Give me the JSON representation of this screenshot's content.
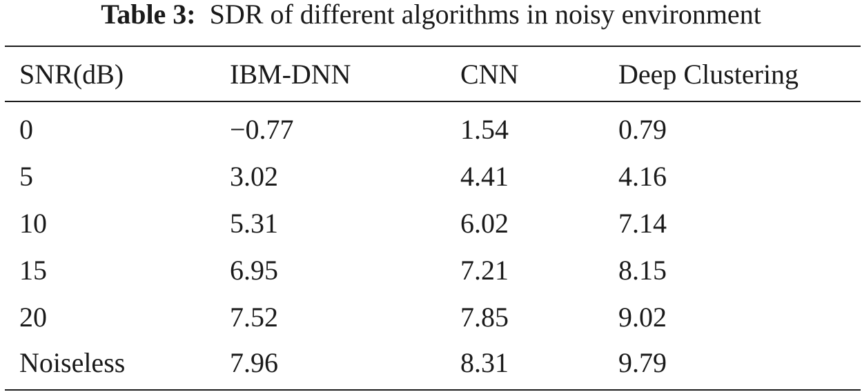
{
  "caption": {
    "label": "Table 3:",
    "text": "SDR of different algorithms in noisy environment"
  },
  "table": {
    "headers": [
      "SNR(dB)",
      "IBM-DNN",
      "CNN",
      "Deep Clustering"
    ],
    "rows": [
      [
        "0",
        "−0.77",
        "1.54",
        "0.79"
      ],
      [
        "5",
        "3.02",
        "4.41",
        "4.16"
      ],
      [
        "10",
        "5.31",
        "6.02",
        "7.14"
      ],
      [
        "15",
        "6.95",
        "7.21",
        "8.15"
      ],
      [
        "20",
        "7.52",
        "7.85",
        "9.02"
      ],
      [
        "Noiseless",
        "7.96",
        "8.31",
        "9.79"
      ]
    ]
  }
}
